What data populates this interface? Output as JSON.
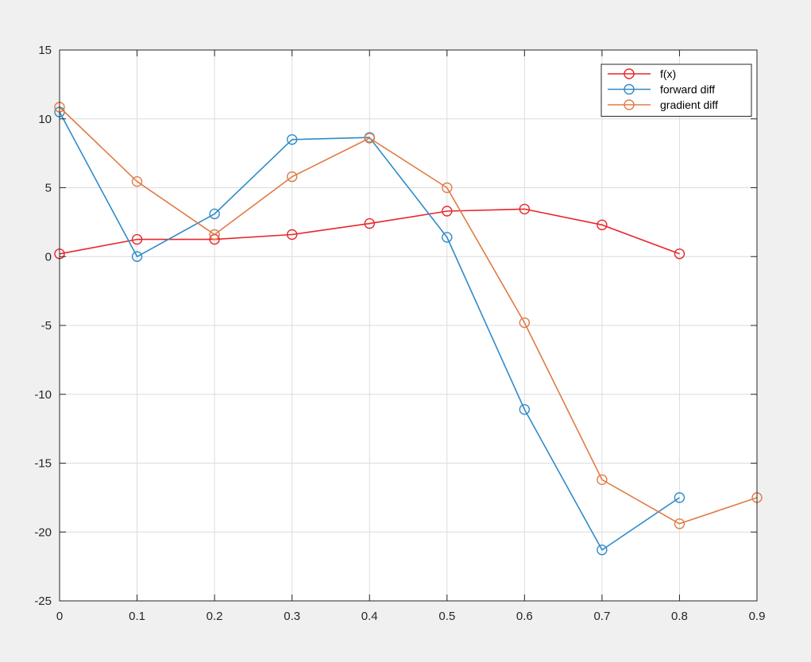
{
  "chart_data": {
    "type": "line",
    "title": "",
    "xlabel": "",
    "ylabel": "",
    "xlim": [
      0,
      0.9
    ],
    "ylim": [
      -25,
      15
    ],
    "xticks": [
      0,
      0.1,
      0.2,
      0.3,
      0.4,
      0.5,
      0.6,
      0.7,
      0.8,
      0.9
    ],
    "xtick_labels": [
      "0",
      "0.1",
      "0.2",
      "0.3",
      "0.4",
      "0.5",
      "0.6",
      "0.7",
      "0.8",
      "0.9"
    ],
    "yticks": [
      15,
      10,
      5,
      0,
      -5,
      -10,
      -15,
      -20,
      -25
    ],
    "ytick_labels": [
      "15",
      "10",
      "5",
      "0",
      "-5",
      "-10",
      "-15",
      "-20",
      "-25"
    ],
    "grid": true,
    "legend_position": "top-right",
    "marker": "circle",
    "series": [
      {
        "name": "f(x)",
        "color": "#e8262a",
        "x": [
          0,
          0.1,
          0.2,
          0.3,
          0.4,
          0.5,
          0.6,
          0.7,
          0.8
        ],
        "y": [
          0.2,
          1.25,
          1.25,
          1.6,
          2.4,
          3.3,
          3.45,
          2.3,
          0.2
        ]
      },
      {
        "name": "forward diff",
        "color": "#2f8bc9",
        "x": [
          0,
          0.1,
          0.2,
          0.3,
          0.4,
          0.5,
          0.6,
          0.7,
          0.8
        ],
        "y": [
          10.5,
          0,
          3.1,
          8.5,
          8.65,
          1.4,
          -11.1,
          -21.3,
          -17.5
        ]
      },
      {
        "name": "gradient diff",
        "color": "#e07b45",
        "x": [
          0,
          0.1,
          0.2,
          0.3,
          0.4,
          0.5,
          0.6,
          0.7,
          0.8,
          0.9
        ],
        "y": [
          10.85,
          5.45,
          1.6,
          5.8,
          8.6,
          5.0,
          -4.8,
          -16.2,
          -19.4,
          -17.5
        ]
      }
    ]
  }
}
